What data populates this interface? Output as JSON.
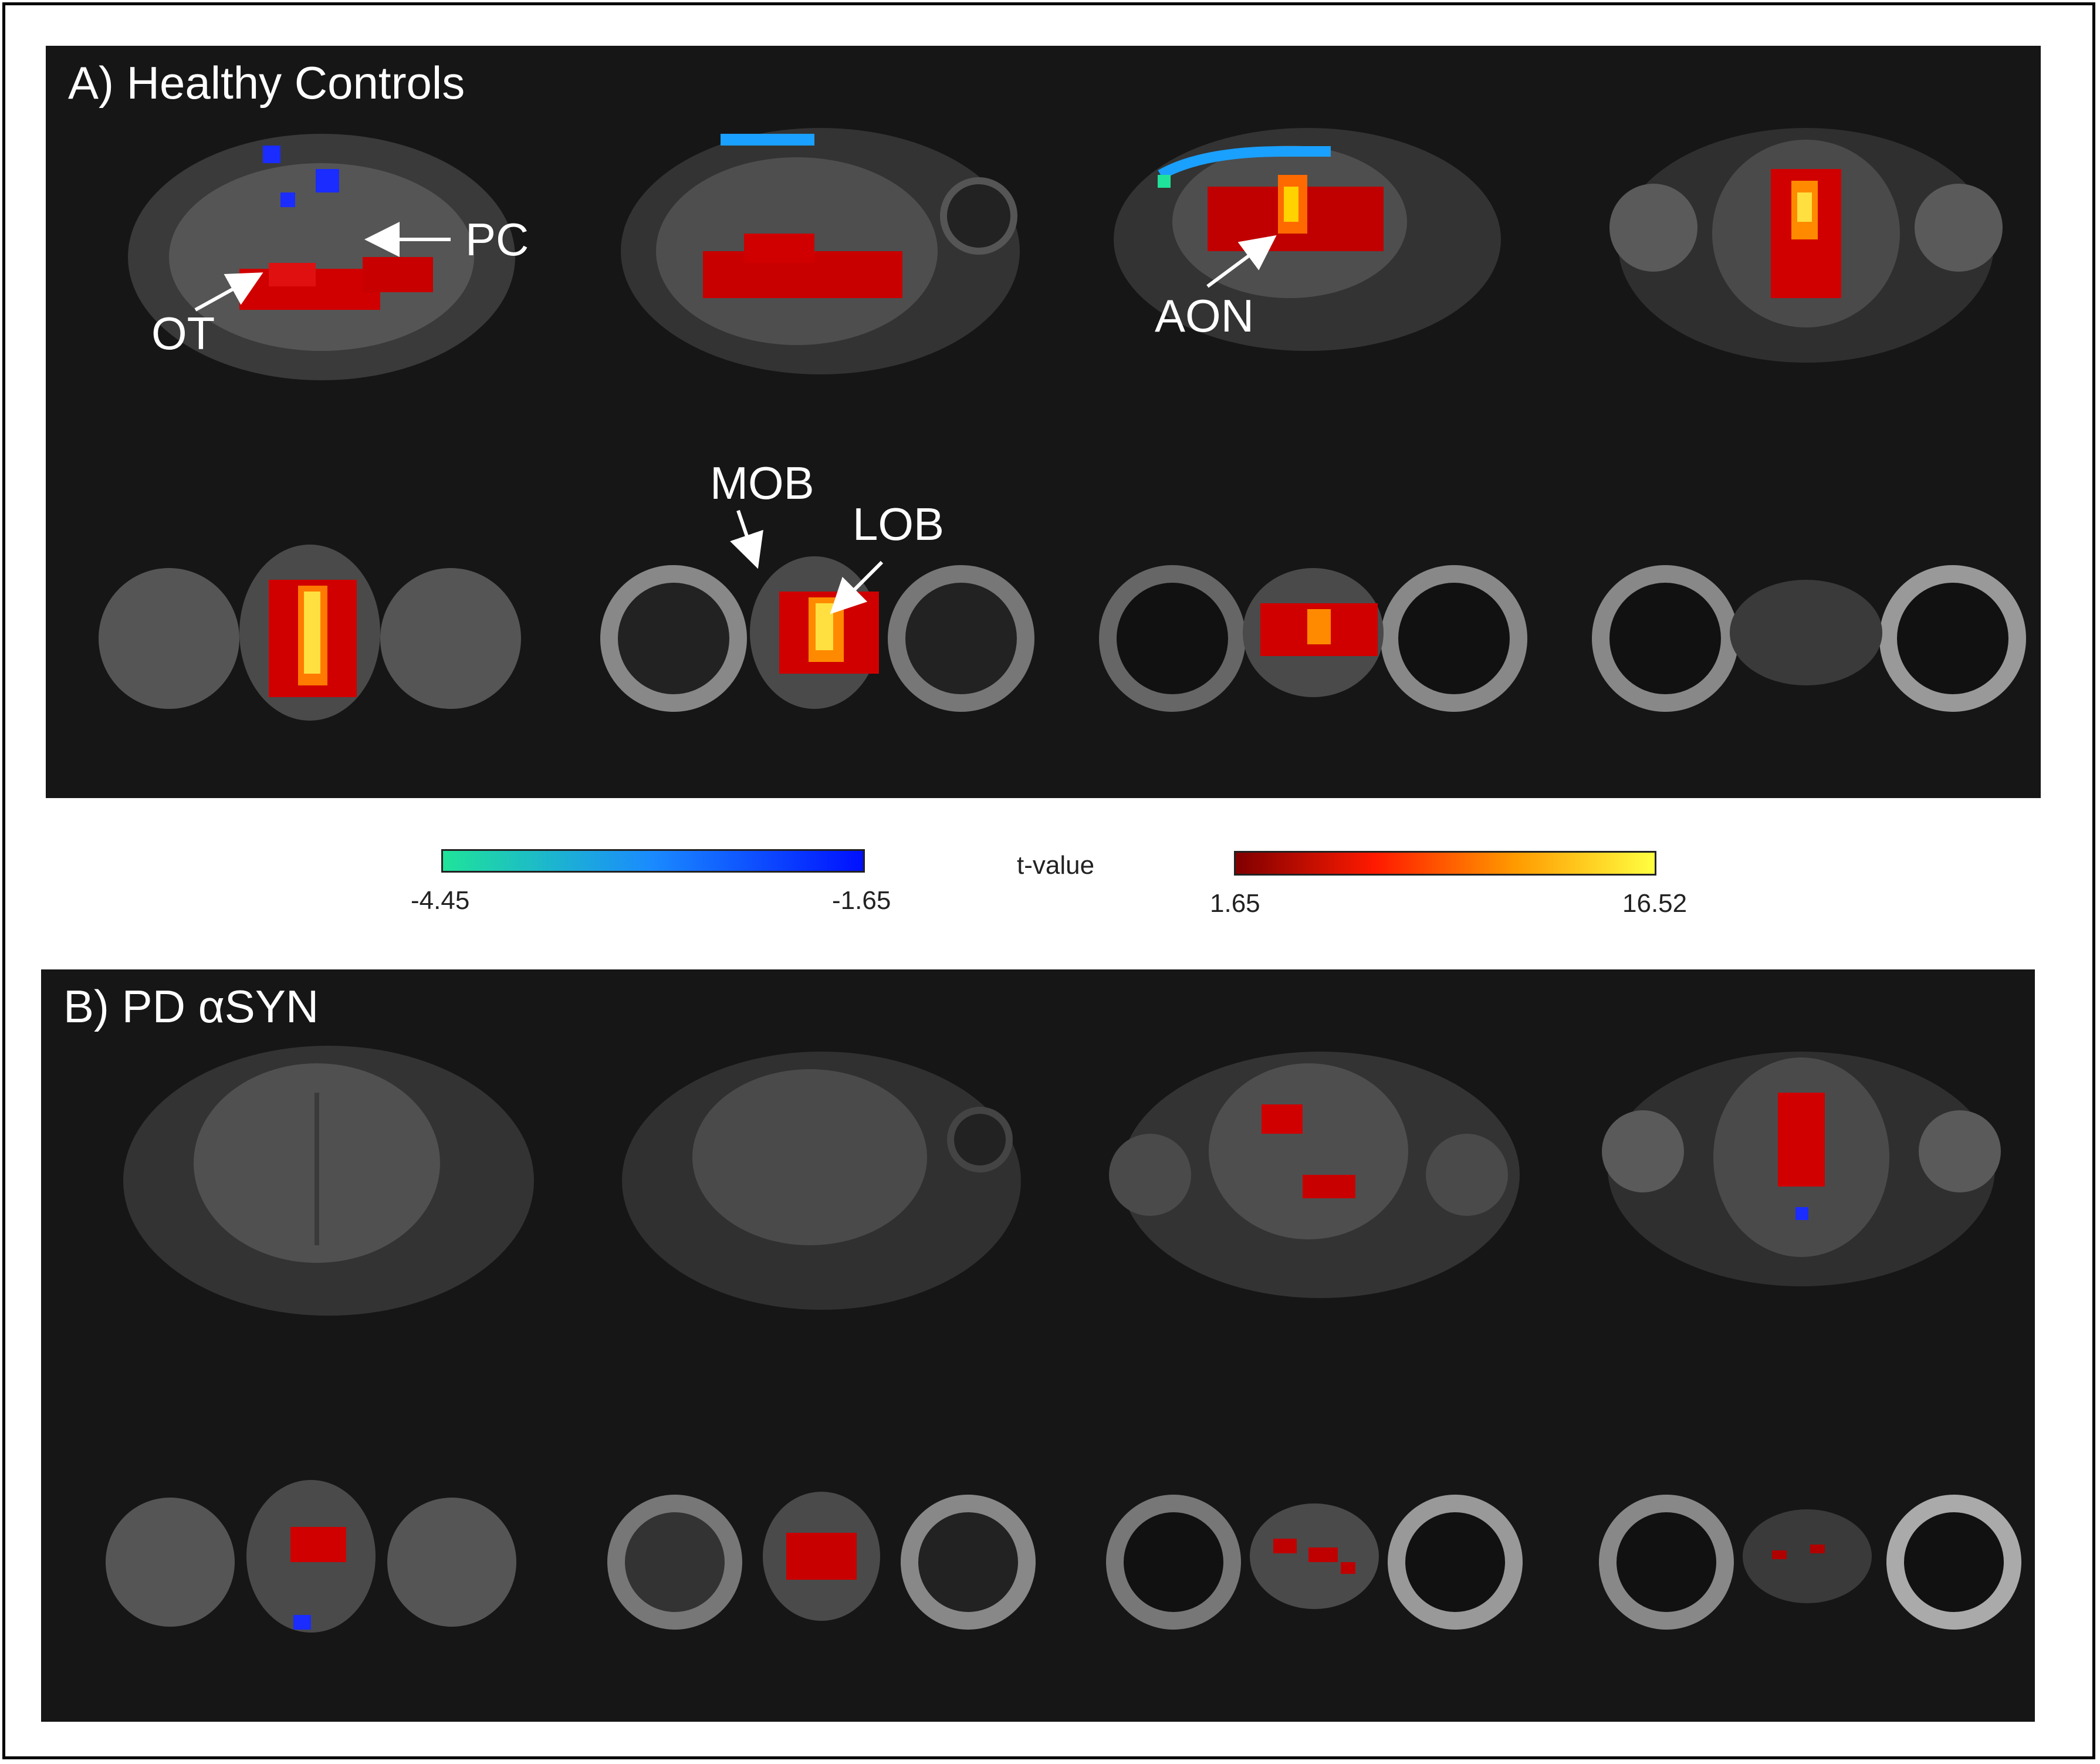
{
  "panels": [
    {
      "title": "A) Healthy Controls"
    },
    {
      "title": "B) PD αSYN"
    }
  ],
  "annotations": {
    "pc": "PC",
    "ot": "OT",
    "aon": "AON",
    "mob": "MOB",
    "lob": "LOB"
  },
  "colorbar": {
    "title": "t-value",
    "negative": {
      "min": "-4.45",
      "max": "-1.65",
      "color_start": "#1fe39a",
      "color_end": "#0010ff"
    },
    "positive": {
      "min": "1.65",
      "max": "16.52",
      "color_start": "#800000",
      "color_mid": "#ff1a00",
      "color_end": "#ffff40"
    }
  },
  "colors": {
    "panel_bg": "#161616",
    "activation_red": "#d00000",
    "activation_hot": "#ffd200",
    "activation_blue": "#1a2cff"
  }
}
